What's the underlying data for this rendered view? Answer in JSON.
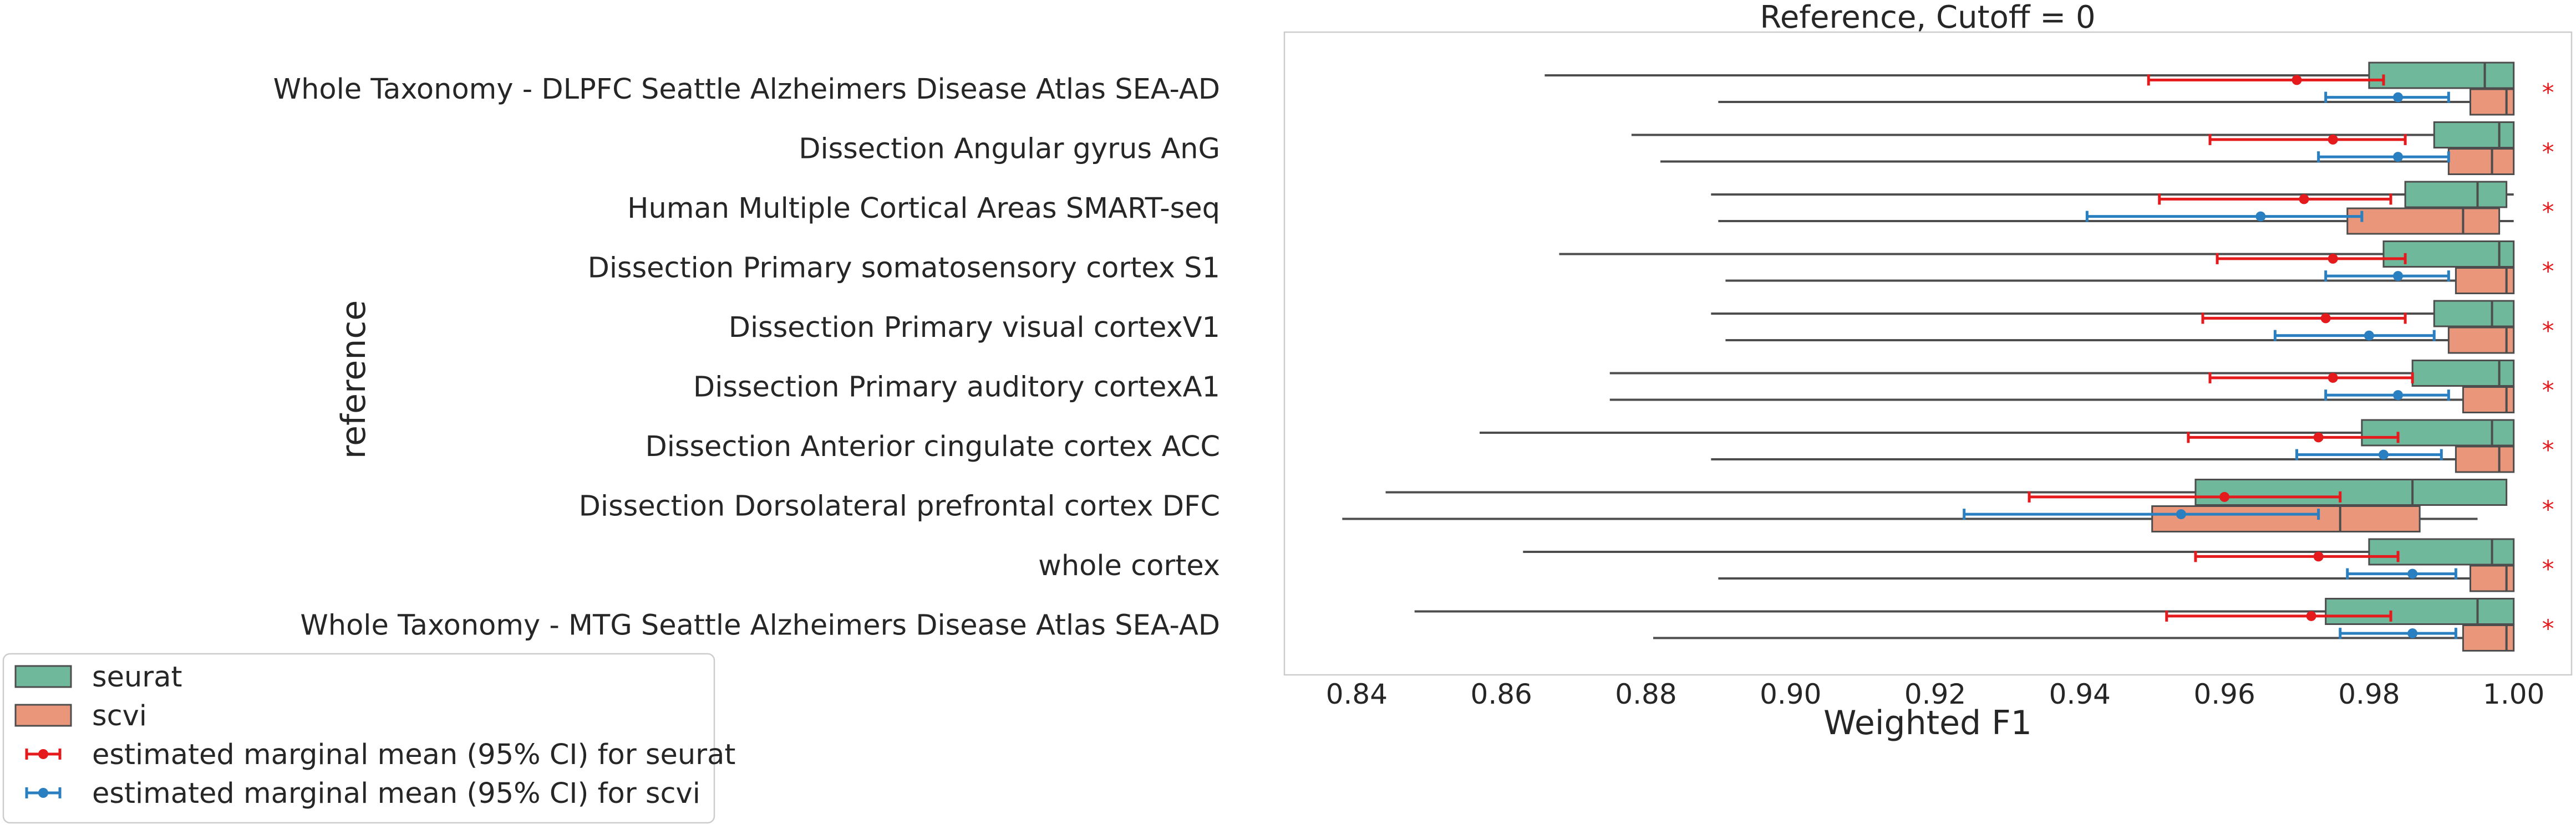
{
  "chart_data": {
    "type": "box",
    "orientation": "horizontal",
    "title": "Reference, Cutoff = 0",
    "xlabel": "Weighted F1",
    "ylabel": "reference",
    "xlim": [
      0.83,
      1.008
    ],
    "xticks": [
      0.84,
      0.86,
      0.88,
      0.9,
      0.92,
      0.94,
      0.96,
      0.98,
      1.0
    ],
    "xtick_labels": [
      "0.84",
      "0.86",
      "0.88",
      "0.90",
      "0.92",
      "0.94",
      "0.96",
      "0.98",
      "1.00"
    ],
    "grid": false,
    "legend_position": "bottom-left, outside plot",
    "significance_marker": "*",
    "colors": {
      "seurat_box": "#6fb89b",
      "scvi_box": "#e9967a",
      "seurat_emm": "#e41a1c",
      "scvi_emm": "#2a7fc1",
      "whisker": "#4d4d4d",
      "star": "#e41a1c"
    },
    "legend": [
      {
        "label": "seurat",
        "kind": "box",
        "color": "#6fb89b"
      },
      {
        "label": "scvi",
        "kind": "box",
        "color": "#e9967a"
      },
      {
        "label": "estimated marginal mean (95% CI) for seurat",
        "kind": "errorbar",
        "color": "#e41a1c"
      },
      {
        "label": "estimated marginal mean (95% CI) for scvi",
        "kind": "errorbar",
        "color": "#2a7fc1"
      }
    ],
    "categories": [
      "Whole Taxonomy - DLPFC Seattle Alzheimers Disease Atlas SEA-AD",
      "Dissection Angular gyrus AnG",
      "Human Multiple Cortical Areas SMART-seq",
      "Dissection Primary somatosensory cortex S1",
      "Dissection Primary visual cortexV1",
      "Dissection Primary auditory cortexA1",
      "Dissection Anterior cingulate cortex ACC",
      "Dissection Dorsolateral prefrontal cortex DFC",
      "whole cortex",
      "Whole Taxonomy - MTG Seattle Alzheimers Disease Atlas SEA-AD"
    ],
    "series": [
      {
        "name": "seurat",
        "boxes": [
          {
            "min": 0.866,
            "q1": 0.98,
            "median": 0.996,
            "q3": 1.0,
            "max": 1.0
          },
          {
            "min": 0.878,
            "q1": 0.989,
            "median": 0.998,
            "q3": 1.0,
            "max": 1.0
          },
          {
            "min": 0.889,
            "q1": 0.985,
            "median": 0.995,
            "q3": 0.999,
            "max": 1.0
          },
          {
            "min": 0.868,
            "q1": 0.982,
            "median": 0.998,
            "q3": 1.0,
            "max": 1.0
          },
          {
            "min": 0.889,
            "q1": 0.989,
            "median": 0.997,
            "q3": 1.0,
            "max": 1.0
          },
          {
            "min": 0.875,
            "q1": 0.986,
            "median": 0.998,
            "q3": 1.0,
            "max": 1.0
          },
          {
            "min": 0.857,
            "q1": 0.979,
            "median": 0.997,
            "q3": 1.0,
            "max": 1.0
          },
          {
            "min": 0.844,
            "q1": 0.956,
            "median": 0.986,
            "q3": 0.999,
            "max": 0.999
          },
          {
            "min": 0.863,
            "q1": 0.98,
            "median": 0.997,
            "q3": 1.0,
            "max": 1.0
          },
          {
            "min": 0.848,
            "q1": 0.974,
            "median": 0.995,
            "q3": 1.0,
            "max": 1.0
          }
        ],
        "emm": [
          {
            "mean": 0.97,
            "lo": 0.9495,
            "hi": 0.982
          },
          {
            "mean": 0.975,
            "lo": 0.958,
            "hi": 0.985
          },
          {
            "mean": 0.971,
            "lo": 0.951,
            "hi": 0.983
          },
          {
            "mean": 0.975,
            "lo": 0.959,
            "hi": 0.985
          },
          {
            "mean": 0.974,
            "lo": 0.957,
            "hi": 0.985
          },
          {
            "mean": 0.975,
            "lo": 0.958,
            "hi": 0.986
          },
          {
            "mean": 0.973,
            "lo": 0.955,
            "hi": 0.984
          },
          {
            "mean": 0.96,
            "lo": 0.933,
            "hi": 0.976
          },
          {
            "mean": 0.973,
            "lo": 0.956,
            "hi": 0.984
          },
          {
            "mean": 0.972,
            "lo": 0.952,
            "hi": 0.983
          }
        ]
      },
      {
        "name": "scvi",
        "boxes": [
          {
            "min": 0.89,
            "q1": 0.994,
            "median": 0.999,
            "q3": 1.0,
            "max": 1.0
          },
          {
            "min": 0.882,
            "q1": 0.991,
            "median": 0.997,
            "q3": 1.0,
            "max": 1.0
          },
          {
            "min": 0.89,
            "q1": 0.977,
            "median": 0.993,
            "q3": 0.998,
            "max": 1.0
          },
          {
            "min": 0.891,
            "q1": 0.992,
            "median": 0.999,
            "q3": 1.0,
            "max": 1.0
          },
          {
            "min": 0.891,
            "q1": 0.991,
            "median": 0.999,
            "q3": 1.0,
            "max": 1.0
          },
          {
            "min": 0.875,
            "q1": 0.993,
            "median": 0.999,
            "q3": 1.0,
            "max": 1.0
          },
          {
            "min": 0.889,
            "q1": 0.992,
            "median": 0.998,
            "q3": 1.0,
            "max": 1.0
          },
          {
            "min": 0.838,
            "q1": 0.95,
            "median": 0.976,
            "q3": 0.987,
            "max": 0.995
          },
          {
            "min": 0.89,
            "q1": 0.994,
            "median": 0.999,
            "q3": 1.0,
            "max": 1.0
          },
          {
            "min": 0.881,
            "q1": 0.993,
            "median": 0.999,
            "q3": 1.0,
            "max": 1.0
          }
        ],
        "emm": [
          {
            "mean": 0.984,
            "lo": 0.974,
            "hi": 0.991
          },
          {
            "mean": 0.984,
            "lo": 0.973,
            "hi": 0.991
          },
          {
            "mean": 0.965,
            "lo": 0.941,
            "hi": 0.979
          },
          {
            "mean": 0.984,
            "lo": 0.974,
            "hi": 0.991
          },
          {
            "mean": 0.98,
            "lo": 0.967,
            "hi": 0.989
          },
          {
            "mean": 0.984,
            "lo": 0.974,
            "hi": 0.991
          },
          {
            "mean": 0.982,
            "lo": 0.97,
            "hi": 0.99
          },
          {
            "mean": 0.954,
            "lo": 0.924,
            "hi": 0.973
          },
          {
            "mean": 0.986,
            "lo": 0.977,
            "hi": 0.992
          },
          {
            "mean": 0.986,
            "lo": 0.976,
            "hi": 0.992
          }
        ]
      }
    ]
  }
}
